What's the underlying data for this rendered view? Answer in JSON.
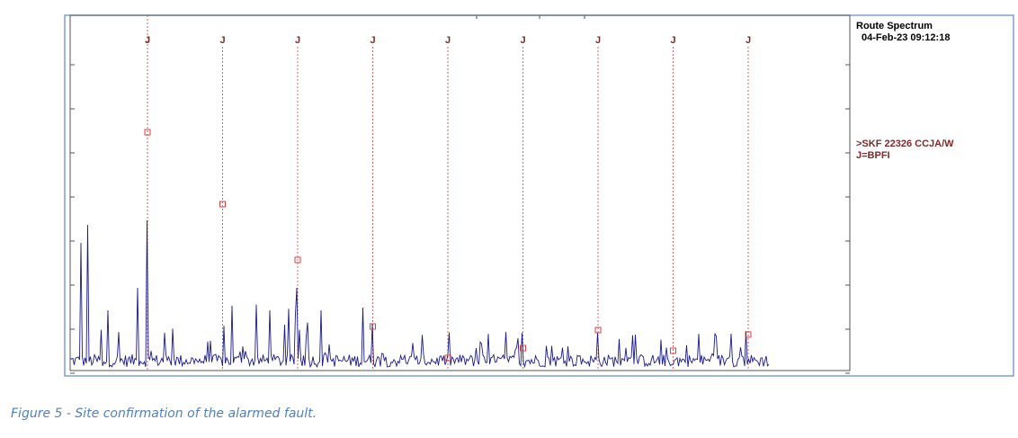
{
  "figure": {
    "panel_title": "Route Spectrum",
    "timestamp": "04-Feb-23  09:12:18",
    "bearing": ">SKF 22326 CCJA/W",
    "defect": "J=BPFI",
    "markers": [
      "J",
      "J",
      "J",
      "J",
      "J",
      "J",
      "J",
      "J",
      "J"
    ]
  },
  "caption": "Figure 5 - Site confirmation of the alarmed fault."
}
